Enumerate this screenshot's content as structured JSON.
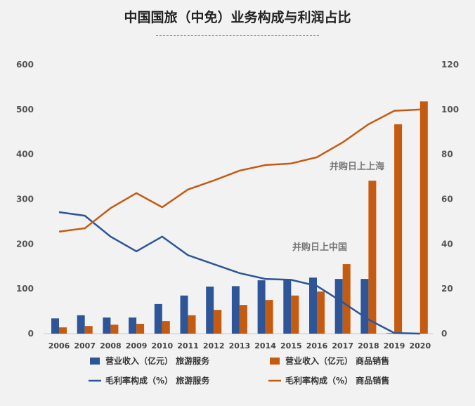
{
  "chart_data": {
    "type": "bar+line",
    "title": "中国国旅（中免）业务构成与利润占比",
    "categories": [
      "2006",
      "2007",
      "2008",
      "2009",
      "2010",
      "2011",
      "2012",
      "2013",
      "2014",
      "2015",
      "2016",
      "2017",
      "2018",
      "2019",
      "2020"
    ],
    "left_axis": {
      "ylim": [
        0,
        600
      ],
      "ticks": [
        "0",
        "100",
        "200",
        "300",
        "400",
        "500",
        "600"
      ]
    },
    "right_axis": {
      "ylim": [
        0,
        120
      ],
      "ticks": [
        "0",
        "20",
        "40",
        "60",
        "80",
        "100",
        "120"
      ]
    },
    "series": [
      {
        "name": "营业收入（亿元） 旅游服务",
        "type": "bar",
        "axis": "left",
        "color": "#2e5597",
        "values": [
          34,
          41,
          36,
          36,
          66,
          85,
          105,
          106,
          119,
          121,
          125,
          122,
          122,
          1,
          0
        ]
      },
      {
        "name": "营业收入（亿元） 商品销售",
        "type": "bar",
        "axis": "left",
        "color": "#c55a11",
        "values": [
          14,
          17,
          20,
          22,
          28,
          41,
          53,
          64,
          75,
          85,
          94,
          155,
          341,
          467,
          518
        ]
      },
      {
        "name": "毛利率构成（%） 旅游服务",
        "type": "line",
        "axis": "right",
        "color": "#2e5597",
        "values": [
          54.2,
          52.6,
          43.3,
          36.7,
          43.3,
          35,
          31,
          27,
          24.4,
          24,
          21.3,
          14,
          6.3,
          0.3,
          0
        ]
      },
      {
        "name": "毛利率构成（%） 商品销售",
        "type": "line",
        "axis": "right",
        "color": "#c55a11",
        "values": [
          45.5,
          47,
          56,
          62.7,
          56.4,
          64.3,
          68.3,
          72.7,
          75.2,
          75.9,
          78.7,
          85.3,
          93.4,
          99.4,
          100
        ]
      }
    ],
    "annotations": [
      {
        "text": "并购日上中国",
        "near": "2016"
      },
      {
        "text": "并购日上上海",
        "near": "2018"
      }
    ],
    "grid": false,
    "legend_placement": "bottom"
  }
}
